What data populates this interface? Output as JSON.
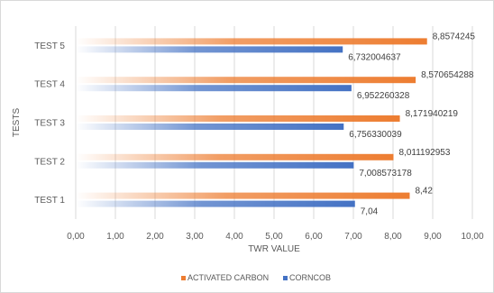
{
  "chart_data": {
    "type": "bar",
    "orientation": "horizontal",
    "categories": [
      "TEST 1",
      "TEST 2",
      "TEST 3",
      "TEST 4",
      "TEST 5"
    ],
    "series": [
      {
        "name": "ACTIVATED CARBON",
        "color": "#ed7d31",
        "values": [
          8.42,
          8.011192953,
          8.171940219,
          8.570654288,
          8.8574245
        ],
        "labels": [
          "8,42",
          "8,011192953",
          "8,171940219",
          "8,570654288",
          "8,8574245"
        ]
      },
      {
        "name": "CORNCOB",
        "color": "#4472c4",
        "values": [
          7.04,
          7.008573178,
          6.756330039,
          6.952260328,
          6.732004637
        ],
        "labels": [
          "7,04",
          "7,008573178",
          "6,756330039",
          "6,952260328",
          "6,732004637"
        ]
      }
    ],
    "xlabel": "TWR VALUE",
    "ylabel": "TESTS",
    "xlim": [
      0,
      10
    ],
    "xticks": [
      "0,00",
      "1,00",
      "2,00",
      "3,00",
      "4,00",
      "5,00",
      "6,00",
      "7,00",
      "8,00",
      "9,00",
      "10,00"
    ],
    "grid": true,
    "legend": "bottom"
  }
}
